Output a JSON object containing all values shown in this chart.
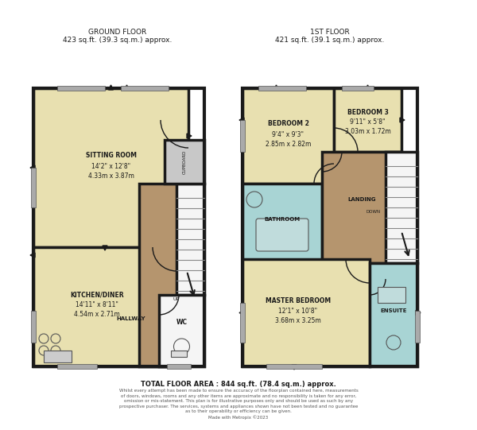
{
  "bg_color": "#ffffff",
  "wall_color": "#1a1a1a",
  "room_yellow": "#e8e0b0",
  "room_brown": "#b5956e",
  "room_blue": "#a8d4d4",
  "room_gray": "#c8c8c8",
  "room_white": "#f5f5f5",
  "title": "GROUND FLOOR\n423 sq.ft. (39.3 sq.m.) approx.",
  "title2": "1ST FLOOR\n421 sq.ft. (39.1 sq.m.) approx.",
  "footer_main": "TOTAL FLOOR AREA : 844 sq.ft. (78.4 sq.m.) approx.",
  "footer_small": "Whilst every attempt has been made to ensure the accuracy of the floorplan contained here, measurements\nof doors, windows, rooms and any other items are approximate and no responsibility is taken for any error,\nomission or mis-statement. This plan is for illustrative purposes only and should be used as such by any\nprospective purchaser. The services, systems and appliances shown have not been tested and no guarantee\nas to their operability or efficiency can be given.\nMade with Metropix ©2023"
}
